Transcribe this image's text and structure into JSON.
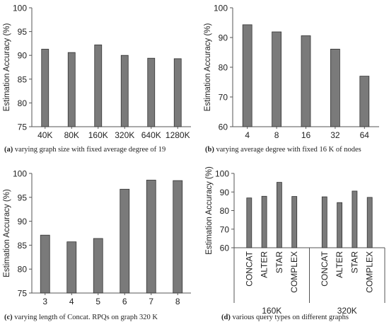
{
  "colors": {
    "bar": "#7a7a7a",
    "bar_stroke": "#333333",
    "axis": "#555555",
    "text": "#222222"
  },
  "chart_data": [
    {
      "id": "a",
      "type": "bar",
      "ylabel": "Estimation Accuracy (%)",
      "ylim": [
        75,
        100
      ],
      "yticks": [
        75,
        80,
        85,
        90,
        95,
        100
      ],
      "categories": [
        "40K",
        "80K",
        "160K",
        "320K",
        "640K",
        "1280K"
      ],
      "values": [
        91.3,
        90.6,
        92.2,
        90.0,
        89.4,
        89.3
      ],
      "grid": false,
      "caption_label": "(a)",
      "caption_text": "varying graph size with fixed average degree of 19"
    },
    {
      "id": "b",
      "type": "bar",
      "ylabel": "Estimation Accuracy (%)",
      "ylim": [
        60,
        100
      ],
      "yticks": [
        60,
        70,
        80,
        90,
        100
      ],
      "categories": [
        "4",
        "8",
        "16",
        "32",
        "64"
      ],
      "values": [
        94.3,
        91.9,
        90.6,
        86.1,
        77.0
      ],
      "grid": false,
      "caption_label": "(b)",
      "caption_text": "varying average degree with fixed 16 K of nodes"
    },
    {
      "id": "c",
      "type": "bar",
      "ylabel": "Estimation Accuracy (%)",
      "ylim": [
        75,
        100
      ],
      "yticks": [
        75,
        80,
        85,
        90,
        95,
        100
      ],
      "categories": [
        "3",
        "4",
        "5",
        "6",
        "7",
        "8"
      ],
      "values": [
        87.1,
        85.7,
        86.4,
        96.7,
        98.6,
        98.5
      ],
      "grid": false,
      "caption_label": "(c)",
      "caption_text": "varying length of Concat. RPQs on graph 320 K"
    },
    {
      "id": "d",
      "type": "bar",
      "ylabel": "Estimation Accuracy (%)",
      "ylim": [
        60,
        100
      ],
      "yticks": [
        60,
        70,
        80,
        90,
        100
      ],
      "groups": [
        "160K",
        "320K"
      ],
      "categories": [
        "CONCAT",
        "ALTER",
        "STAR",
        "COMPLEX"
      ],
      "series": [
        {
          "name": "160K",
          "values": [
            86.8,
            87.7,
            95.2,
            87.6
          ]
        },
        {
          "name": "320K",
          "values": [
            87.4,
            84.3,
            90.5,
            87.1
          ]
        }
      ],
      "grid": false,
      "caption_label": "(d)",
      "caption_text": "various query types on different graphs"
    }
  ]
}
